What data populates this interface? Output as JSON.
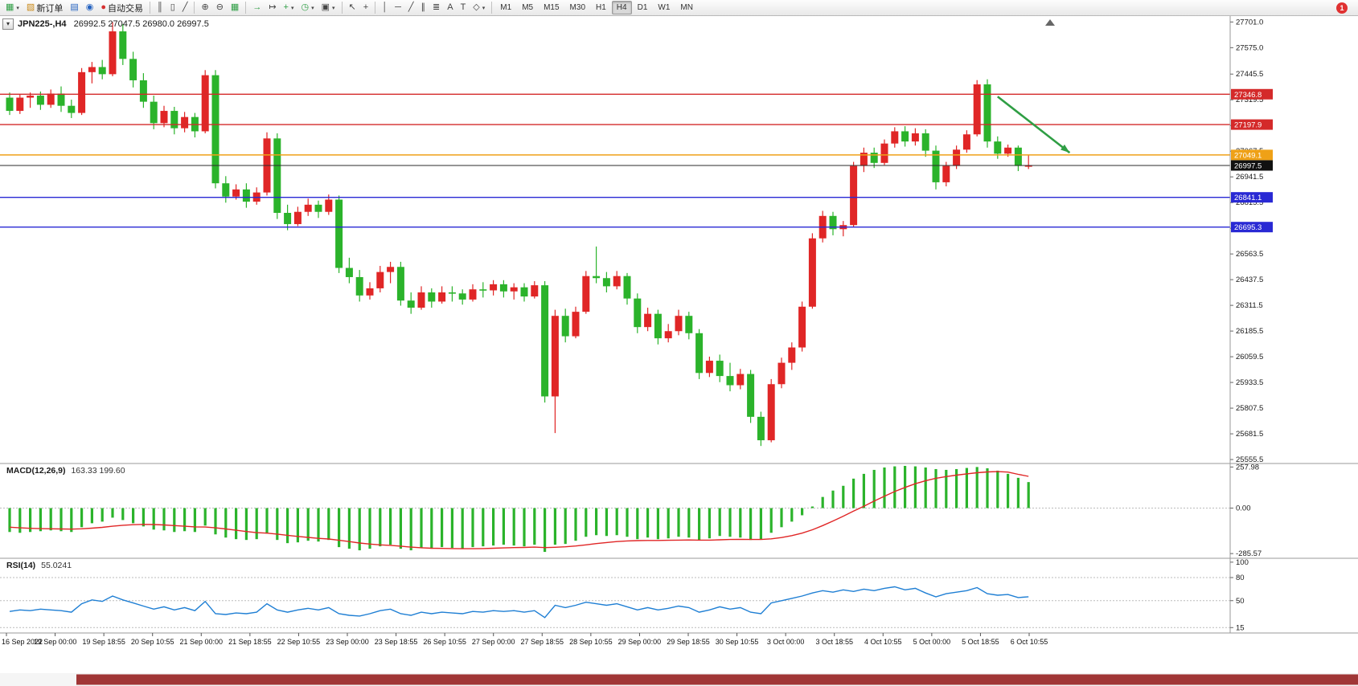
{
  "toolbar": {
    "new_order_label": "新订单",
    "autotrading_label": "自动交易",
    "timeframes": [
      "M1",
      "M5",
      "M15",
      "M30",
      "H1",
      "H4",
      "D1",
      "W1",
      "MN"
    ],
    "active_timeframe": "H4",
    "notification_count": "1",
    "icons": {
      "new_chart": "▦",
      "new_order": "▧",
      "profiles": "▤",
      "quotes": "◉",
      "autotrading": "●",
      "bars": "║",
      "candles": "▯",
      "linechart": "╱",
      "zoom_in": "⊕",
      "zoom_out": "⊖",
      "tile": "▦",
      "autoscroll": "→",
      "shift": "↦",
      "indicators": "+",
      "periods": "◷",
      "templates": "▣",
      "cursor": "↖",
      "crosshair": "+",
      "vline": "│",
      "hline": "─",
      "trendline": "╱",
      "channel": "∥",
      "fibo": "≣",
      "text_tool": "A",
      "label_tool": "T",
      "shapes": "◇",
      "caret": "▾",
      "oneclick": "▾"
    }
  },
  "chart": {
    "title_symbol": "JPN225-,H4",
    "title_ohlc": "26992.5 27047.5 26980.0 26997.5"
  },
  "indicators": {
    "macd": {
      "label": "MACD(12,26,9)",
      "values": "163.33 199.60"
    },
    "rsi": {
      "label": "RSI(14)",
      "values": "55.0241"
    }
  },
  "chart_data": [
    {
      "type": "candlestick",
      "title": "JPN225-,H4",
      "ohlc_display": "26992.5 27047.5 26980.0 26997.5",
      "timeframe": "H4",
      "ylim": [
        25540,
        27730
      ],
      "y_ticks": [
        "27701.0",
        "27575.0",
        "27445.5",
        "27319.5",
        "27193.5",
        "27067.5",
        "26941.5",
        "26815.5",
        "26689.5",
        "26563.5",
        "26437.5",
        "26311.5",
        "26185.5",
        "26059.5",
        "25933.5",
        "25807.5",
        "25681.5",
        "25555.5"
      ],
      "up_color": "#e02626",
      "down_color": "#2bb32b",
      "x_labels": [
        "16 Sep 2022",
        "19 Sep 00:00",
        "19 Sep 18:55",
        "20 Sep 10:55",
        "21 Sep 00:00",
        "21 Sep 18:55",
        "22 Sep 10:55",
        "23 Sep 00:00",
        "23 Sep 18:55",
        "26 Sep 10:55",
        "27 Sep 00:00",
        "27 Sep 18:55",
        "28 Sep 10:55",
        "29 Sep 00:00",
        "29 Sep 18:55",
        "30 Sep 10:55",
        "3 Oct 00:00",
        "3 Oct 18:55",
        "4 Oct 10:55",
        "5 Oct 00:00",
        "5 Oct 18:55",
        "6 Oct 10:55"
      ],
      "candles_ohlc": [
        [
          27330,
          27355,
          27245,
          27265
        ],
        [
          27265,
          27345,
          27250,
          27330
        ],
        [
          27330,
          27355,
          27280,
          27340
        ],
        [
          27340,
          27360,
          27270,
          27295
        ],
        [
          27295,
          27370,
          27280,
          27350
        ],
        [
          27350,
          27385,
          27260,
          27290
        ],
        [
          27290,
          27320,
          27230,
          27255
        ],
        [
          27255,
          27475,
          27245,
          27455
        ],
        [
          27455,
          27505,
          27400,
          27480
        ],
        [
          27480,
          27515,
          27420,
          27445
        ],
        [
          27445,
          27700,
          27435,
          27655
        ],
        [
          27655,
          27690,
          27490,
          27520
        ],
        [
          27520,
          27555,
          27380,
          27415
        ],
        [
          27415,
          27450,
          27280,
          27310
        ],
        [
          27310,
          27340,
          27175,
          27205
        ],
        [
          27205,
          27290,
          27185,
          27265
        ],
        [
          27265,
          27285,
          27150,
          27180
        ],
        [
          27180,
          27260,
          27160,
          27235
        ],
        [
          27235,
          27255,
          27135,
          27165
        ],
        [
          27165,
          27465,
          27155,
          27440
        ],
        [
          27440,
          27465,
          26885,
          26910
        ],
        [
          26910,
          26945,
          26815,
          26845
        ],
        [
          26845,
          26905,
          26830,
          26880
        ],
        [
          26880,
          26910,
          26790,
          26820
        ],
        [
          26820,
          26890,
          26805,
          26865
        ],
        [
          26865,
          27160,
          26850,
          27130
        ],
        [
          27130,
          27155,
          26735,
          26765
        ],
        [
          26765,
          26805,
          26680,
          26710
        ],
        [
          26710,
          26795,
          26700,
          26770
        ],
        [
          26770,
          26835,
          26750,
          26805
        ],
        [
          26805,
          26825,
          26740,
          26770
        ],
        [
          26770,
          26855,
          26755,
          26830
        ],
        [
          26830,
          26850,
          26470,
          26495
        ],
        [
          26495,
          26545,
          26420,
          26450
        ],
        [
          26450,
          26485,
          26330,
          26360
        ],
        [
          26360,
          26425,
          26340,
          26395
        ],
        [
          26395,
          26505,
          26375,
          26475
        ],
        [
          26475,
          26525,
          26420,
          26500
        ],
        [
          26500,
          26525,
          26310,
          26335
        ],
        [
          26335,
          26375,
          26270,
          26300
        ],
        [
          26300,
          26405,
          26290,
          26375
        ],
        [
          26375,
          26395,
          26300,
          26330
        ],
        [
          26330,
          26405,
          26320,
          26375
        ],
        [
          26375,
          26405,
          26330,
          26370
        ],
        [
          26370,
          26390,
          26315,
          26340
        ],
        [
          26340,
          26415,
          26330,
          26390
        ],
        [
          26390,
          26425,
          26350,
          26385
        ],
        [
          26385,
          26435,
          26360,
          26415
        ],
        [
          26415,
          26435,
          26350,
          26380
        ],
        [
          26380,
          26420,
          26340,
          26400
        ],
        [
          26400,
          26420,
          26330,
          26355
        ],
        [
          26355,
          26430,
          26345,
          26410
        ],
        [
          26410,
          26430,
          25835,
          25865
        ],
        [
          25865,
          26290,
          25685,
          26260
        ],
        [
          26260,
          26295,
          26130,
          26160
        ],
        [
          26160,
          26305,
          26150,
          26280
        ],
        [
          26280,
          26480,
          26270,
          26455
        ],
        [
          26455,
          26600,
          26420,
          26445
        ],
        [
          26445,
          26475,
          26375,
          26405
        ],
        [
          26405,
          26480,
          26390,
          26455
        ],
        [
          26455,
          26470,
          26315,
          26345
        ],
        [
          26345,
          26370,
          26175,
          26205
        ],
        [
          26205,
          26300,
          26185,
          26270
        ],
        [
          26270,
          26290,
          26120,
          26150
        ],
        [
          26150,
          26220,
          26130,
          26185
        ],
        [
          26185,
          26290,
          26165,
          26260
        ],
        [
          26260,
          26280,
          26145,
          26175
        ],
        [
          26175,
          26195,
          25950,
          25980
        ],
        [
          25980,
          26060,
          25960,
          26040
        ],
        [
          26040,
          26070,
          25935,
          25965
        ],
        [
          25965,
          26030,
          25890,
          25920
        ],
        [
          25920,
          26000,
          25900,
          25975
        ],
        [
          25975,
          25995,
          25735,
          25765
        ],
        [
          25765,
          25790,
          25622,
          25650
        ],
        [
          25650,
          25950,
          25640,
          25925
        ],
        [
          25925,
          26055,
          25905,
          26030
        ],
        [
          26030,
          26130,
          25995,
          26105
        ],
        [
          26105,
          26330,
          26085,
          26305
        ],
        [
          26305,
          26665,
          26295,
          26640
        ],
        [
          26640,
          26775,
          26620,
          26750
        ],
        [
          26750,
          26770,
          26655,
          26685
        ],
        [
          26685,
          26725,
          26650,
          26705
        ],
        [
          26705,
          27015,
          26695,
          26995
        ],
        [
          26995,
          27085,
          26965,
          27060
        ],
        [
          27060,
          27085,
          26985,
          27010
        ],
        [
          27010,
          27125,
          27000,
          27105
        ],
        [
          27105,
          27185,
          27085,
          27165
        ],
        [
          27165,
          27190,
          27090,
          27115
        ],
        [
          27115,
          27180,
          27095,
          27155
        ],
        [
          27155,
          27175,
          27040,
          27070
        ],
        [
          27070,
          27095,
          26880,
          26915
        ],
        [
          26915,
          27015,
          26895,
          26995
        ],
        [
          26995,
          27095,
          26980,
          27075
        ],
        [
          27075,
          27170,
          27060,
          27150
        ],
        [
          27150,
          27416,
          27140,
          27395
        ],
        [
          27395,
          27420,
          27085,
          27115
        ],
        [
          27115,
          27140,
          27030,
          27055
        ],
        [
          27055,
          27100,
          27040,
          27085
        ],
        [
          27085,
          27095,
          26970,
          26995
        ],
        [
          26992.5,
          27047.5,
          26980,
          26997.5
        ]
      ],
      "hlines": [
        {
          "price": 27346.8,
          "color": "#d42a2a",
          "label": "27346.8"
        },
        {
          "price": 27197.9,
          "color": "#d42a2a",
          "label": "27197.9"
        },
        {
          "price": 27049.1,
          "color": "#efa117",
          "label": "27049.1"
        },
        {
          "price": 26841.1,
          "color": "#2929d4",
          "label": "26841.1"
        },
        {
          "price": 26695.3,
          "color": "#2929d4",
          "label": "26695.3"
        }
      ],
      "current_price": {
        "price": 26997.5,
        "color": "#2b2b2b",
        "label": "26997.5",
        "label_bg": "#111111"
      },
      "arrow_annotation": {
        "from_index": 96,
        "from_price": 27335,
        "to_index": 103,
        "to_price": 27060,
        "color": "#2f9e44"
      }
    },
    {
      "type": "bar",
      "name": "MACD(12,26,9)",
      "values_display": "163.33 199.60",
      "ylim": [
        -310,
        275
      ],
      "y_ticks": [
        {
          "value": 257.98,
          "label": "257.98"
        },
        {
          "value": 0,
          "label": "0.00"
        },
        {
          "value": -285.57,
          "label": "-285.57"
        }
      ],
      "histogram_color": "#2bb32b",
      "signal_color": "#e02626",
      "histogram": [
        -150,
        -155,
        -150,
        -145,
        -140,
        -145,
        -150,
        -120,
        -95,
        -85,
        -60,
        -75,
        -95,
        -115,
        -135,
        -140,
        -150,
        -145,
        -150,
        -110,
        -165,
        -185,
        -195,
        -200,
        -195,
        -160,
        -200,
        -220,
        -215,
        -205,
        -210,
        -200,
        -245,
        -255,
        -265,
        -255,
        -240,
        -230,
        -255,
        -265,
        -250,
        -255,
        -245,
        -250,
        -255,
        -245,
        -240,
        -235,
        -230,
        -235,
        -240,
        -230,
        -275,
        -230,
        -225,
        -205,
        -180,
        -170,
        -175,
        -170,
        -180,
        -195,
        -185,
        -195,
        -190,
        -180,
        -185,
        -200,
        -190,
        -175,
        -180,
        -185,
        -200,
        -195,
        -155,
        -120,
        -85,
        -45,
        10,
        70,
        110,
        140,
        185,
        215,
        240,
        255,
        262,
        265,
        262,
        255,
        245,
        240,
        245,
        252,
        258,
        250,
        235,
        215,
        190,
        163.33
      ],
      "signal": [
        -120,
        -124,
        -127,
        -129,
        -130,
        -131,
        -132,
        -130,
        -126,
        -121,
        -114,
        -108,
        -104,
        -102,
        -103,
        -106,
        -110,
        -114,
        -118,
        -119,
        -124,
        -131,
        -139,
        -147,
        -154,
        -157,
        -163,
        -171,
        -178,
        -184,
        -190,
        -194,
        -202,
        -210,
        -219,
        -226,
        -231,
        -234,
        -239,
        -245,
        -249,
        -252,
        -253,
        -254,
        -255,
        -255,
        -254,
        -252,
        -250,
        -248,
        -247,
        -245,
        -248,
        -246,
        -243,
        -238,
        -231,
        -223,
        -216,
        -210,
        -206,
        -204,
        -203,
        -203,
        -202,
        -201,
        -200,
        -201,
        -201,
        -199,
        -197,
        -196,
        -197,
        -197,
        -193,
        -185,
        -173,
        -157,
        -136,
        -110,
        -81,
        -51,
        -19,
        12,
        44,
        75,
        104,
        130,
        153,
        172,
        187,
        198,
        207,
        215,
        222,
        227,
        229,
        226,
        212,
        199.6
      ]
    },
    {
      "type": "line",
      "name": "RSI(14)",
      "value_display": "55.0241",
      "ylim": [
        8,
        104
      ],
      "levels": [
        {
          "value": 100,
          "label": "100",
          "line": false
        },
        {
          "value": 80,
          "label": "80",
          "line": true
        },
        {
          "value": 50,
          "label": "50",
          "line": true
        },
        {
          "value": 15,
          "label": "15",
          "line": true
        }
      ],
      "line_color": "#1f7fd4",
      "values": [
        36,
        38,
        37,
        39,
        38,
        37,
        35,
        46,
        51,
        49,
        56,
        51,
        47,
        43,
        39,
        42,
        38,
        41,
        37,
        49,
        33,
        32,
        34,
        33,
        35,
        46,
        38,
        35,
        38,
        40,
        38,
        41,
        33,
        31,
        30,
        33,
        37,
        39,
        33,
        31,
        35,
        33,
        35,
        34,
        33,
        36,
        35,
        37,
        36,
        37,
        35,
        37,
        28,
        44,
        41,
        44,
        48,
        46,
        44,
        46,
        42,
        38,
        41,
        38,
        40,
        43,
        41,
        35,
        38,
        42,
        39,
        41,
        35,
        33,
        47,
        50,
        53,
        56,
        60,
        63,
        61,
        64,
        62,
        65,
        63,
        66,
        68,
        64,
        66,
        60,
        55,
        59,
        61,
        63,
        67,
        59,
        57,
        58,
        54,
        55.02
      ]
    }
  ]
}
